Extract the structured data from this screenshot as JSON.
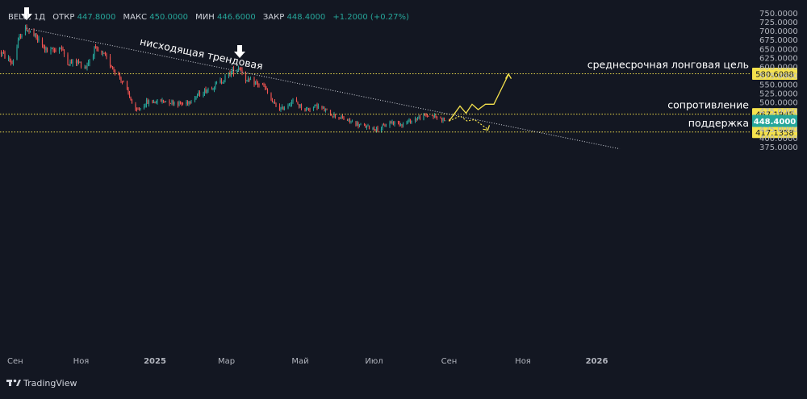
{
  "header": {
    "symbol": "BELU, 1Д",
    "open_label": "ОТКР",
    "open_value": "447.8000",
    "high_label": "МАКС",
    "high_value": "450.0000",
    "low_label": "МИН",
    "low_value": "446.6000",
    "close_label": "ЗАКР",
    "close_value": "448.4000",
    "change": "+1.2000 (+0.27%)"
  },
  "brand": "TradingView",
  "colors": {
    "background": "#131722",
    "up": "#26a69a",
    "down": "#ef5350",
    "level_line": "#e6d54a",
    "label_bg": "#f5e24d",
    "price_tag": "#26a69a",
    "text": "#d1d4dc"
  },
  "chart_data": {
    "type": "candlestick",
    "ylim": [
      360,
      755
    ],
    "y_ticks": [
      "750.0000",
      "725.0000",
      "700.0000",
      "675.0000",
      "650.0000",
      "625.0000",
      "600.0000",
      "575.0000",
      "550.0000",
      "525.0000",
      "500.0000",
      "475.0000",
      "450.0000",
      "425.0000",
      "400.0000",
      "375.0000"
    ],
    "y_tick_values": [
      750,
      725,
      700,
      675,
      650,
      625,
      600,
      575,
      550,
      525,
      500,
      475,
      450,
      425,
      400,
      375
    ],
    "x_ticks": [
      {
        "label": "Сен",
        "date": "2024-09-01"
      },
      {
        "label": "Ноя",
        "date": "2024-11-01"
      },
      {
        "label": "2025",
        "date": "2025-01-01",
        "bold": true
      },
      {
        "label": "Мар",
        "date": "2025-03-01"
      },
      {
        "label": "Май",
        "date": "2025-05-01"
      },
      {
        "label": "Июл",
        "date": "2025-07-01"
      },
      {
        "label": "Сен",
        "date": "2025-09-01"
      },
      {
        "label": "Ноя",
        "date": "2025-11-01"
      },
      {
        "label": "2026",
        "date": "2026-01-01",
        "bold": true
      }
    ],
    "x_range": [
      "2024-08-27",
      "2026-02-28"
    ],
    "price_anchors": [
      [
        "2024-08-27",
        640
      ],
      [
        "2024-09-05",
        610
      ],
      [
        "2024-09-12",
        690
      ],
      [
        "2024-09-17",
        708
      ],
      [
        "2024-09-25",
        680
      ],
      [
        "2024-10-05",
        640
      ],
      [
        "2024-10-15",
        655
      ],
      [
        "2024-10-22",
        610
      ],
      [
        "2024-10-28",
        615
      ],
      [
        "2024-11-05",
        600
      ],
      [
        "2024-11-12",
        648
      ],
      [
        "2024-11-20",
        630
      ],
      [
        "2024-11-28",
        595
      ],
      [
        "2024-12-05",
        560
      ],
      [
        "2024-12-12",
        510
      ],
      [
        "2024-12-15",
        470
      ],
      [
        "2024-12-25",
        500
      ],
      [
        "2025-01-10",
        505
      ],
      [
        "2025-01-25",
        495
      ],
      [
        "2025-02-05",
        520
      ],
      [
        "2025-02-15",
        540
      ],
      [
        "2025-02-25",
        560
      ],
      [
        "2025-03-05",
        585
      ],
      [
        "2025-03-12",
        600
      ],
      [
        "2025-03-18",
        560
      ],
      [
        "2025-03-25",
        555
      ],
      [
        "2025-04-01",
        545
      ],
      [
        "2025-04-08",
        500
      ],
      [
        "2025-04-15",
        480
      ],
      [
        "2025-04-25",
        505
      ],
      [
        "2025-05-05",
        480
      ],
      [
        "2025-05-15",
        490
      ],
      [
        "2025-05-25",
        470
      ],
      [
        "2025-06-05",
        455
      ],
      [
        "2025-06-20",
        435
      ],
      [
        "2025-07-05",
        425
      ],
      [
        "2025-07-15",
        445
      ],
      [
        "2025-07-25",
        440
      ],
      [
        "2025-08-05",
        455
      ],
      [
        "2025-08-15",
        465
      ],
      [
        "2025-08-25",
        455
      ],
      [
        "2025-09-01",
        448.4
      ]
    ],
    "last_candle": {
      "date": "2025-09-01",
      "open": 447.8,
      "high": 450.0,
      "low": 446.6,
      "close": 448.4
    },
    "current_price": {
      "value": 448.4,
      "label": "448.4000"
    },
    "levels": [
      {
        "value": 580.6088,
        "label": "580.6088",
        "annotation": "среднесрочная лонговая цель"
      },
      {
        "value": 467.1945,
        "label": "467.1945",
        "annotation": "сопротивление"
      },
      {
        "value": 417.1358,
        "label": "417.1358",
        "annotation": "поддержка"
      }
    ],
    "trendline": {
      "label": "нисходящая трендовая",
      "start": [
        "2024-09-17",
        708
      ],
      "end": [
        "2026-01-20",
        370
      ]
    },
    "markers": [
      {
        "date": "2024-09-17",
        "value": 708,
        "shape": "down-arrow"
      },
      {
        "date": "2025-03-12",
        "value": 602,
        "shape": "down-arrow"
      }
    ],
    "bull_path": [
      [
        "2025-09-01",
        448
      ],
      [
        "2025-09-10",
        490
      ],
      [
        "2025-09-15",
        470
      ],
      [
        "2025-09-20",
        495
      ],
      [
        "2025-09-25",
        480
      ],
      [
        "2025-10-01",
        495
      ],
      [
        "2025-10-08",
        495
      ],
      [
        "2025-10-20",
        578
      ]
    ],
    "bear_path": [
      [
        "2025-09-01",
        448
      ],
      [
        "2025-09-10",
        462
      ],
      [
        "2025-09-16",
        448
      ],
      [
        "2025-09-22",
        452
      ],
      [
        "2025-10-03",
        425
      ]
    ]
  }
}
